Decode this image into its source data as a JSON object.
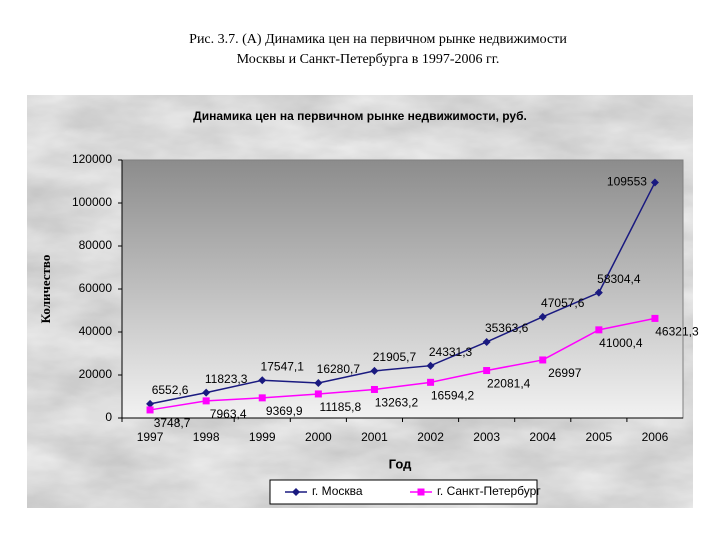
{
  "chart_data": {
    "type": "line",
    "caption": [
      "Рис. 3.7. (А) Динамика цен на первичном рынке недвижимости",
      "Москвы и Санкт-Петербурга в 1997-2006 гг."
    ],
    "title": "Динамика цен на первичном рынке недвижимости, руб.",
    "x_label": "Год",
    "y_label": "Количество",
    "categories": [
      "1997",
      "1998",
      "1999",
      "2000",
      "2001",
      "2002",
      "2003",
      "2004",
      "2005",
      "2006"
    ],
    "series": [
      {
        "name": "г. Москва",
        "color": "#1a1a80",
        "marker": "diamond",
        "values": [
          6552.6,
          11823.3,
          17547.1,
          16280.7,
          21905.7,
          24331.3,
          35363.6,
          47057.6,
          58304.4,
          109553
        ],
        "value_labels": [
          "6552,6",
          "11823,3",
          "17547,1",
          "16280,7",
          "21905,7",
          "24331,3",
          "35363,6",
          "47057,6",
          "58304,4",
          "109553"
        ]
      },
      {
        "name": "г. Санкт-Петербург",
        "color": "#ff00ff",
        "marker": "square",
        "values": [
          3748.7,
          7963.4,
          9369.9,
          11185.8,
          13263.2,
          16594.2,
          22081.4,
          26997,
          41000.4,
          46321.3
        ],
        "value_labels": [
          "3748,7",
          "7963,4",
          "9369,9",
          "11185,8",
          "13263,2",
          "16594,2",
          "22081,4",
          "26997",
          "41000,4",
          "46321,3"
        ]
      }
    ],
    "ylim": [
      0,
      120000
    ],
    "yticks": [
      0,
      20000,
      40000,
      60000,
      80000,
      100000,
      120000
    ],
    "grid": false,
    "legend": "bottom"
  }
}
